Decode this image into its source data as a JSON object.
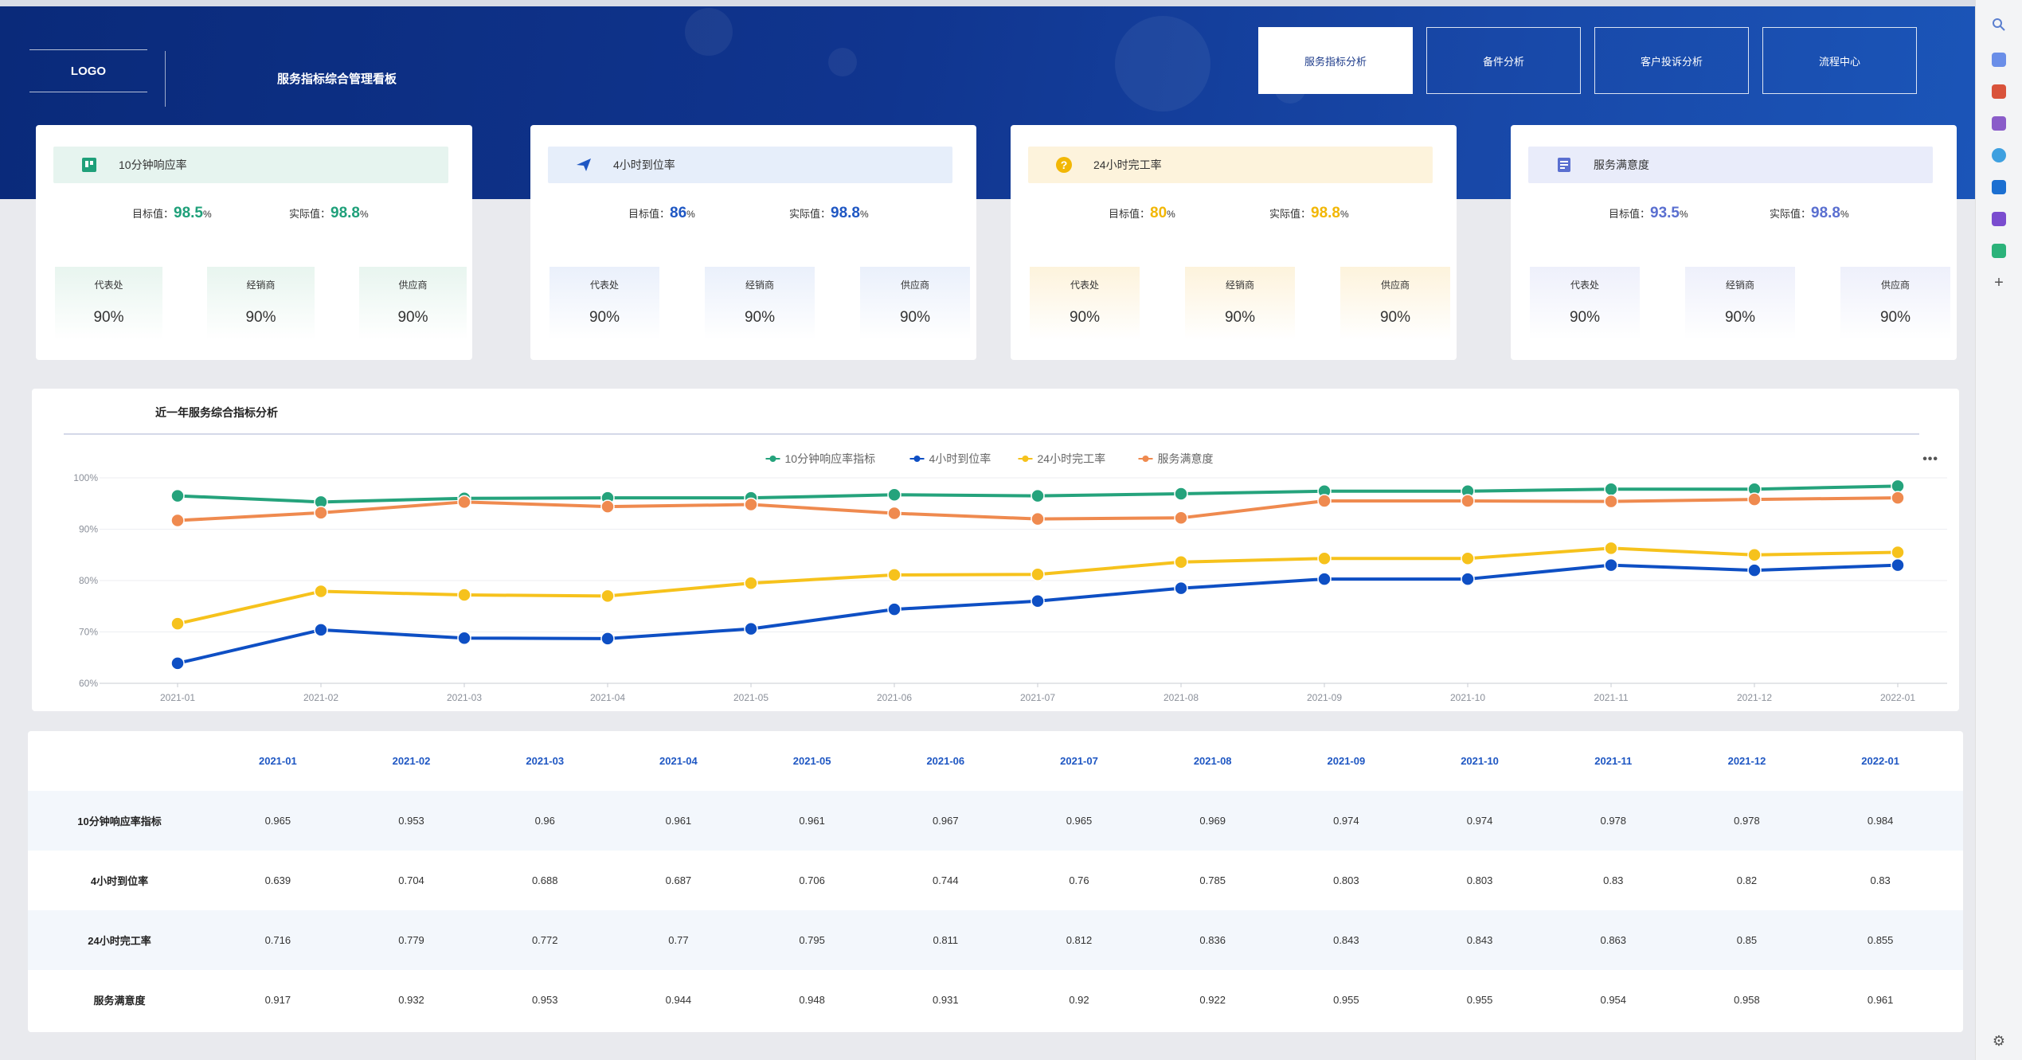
{
  "header": {
    "logo": "LOGO",
    "title": "服务指标综合管理看板",
    "tabs": [
      {
        "label": "服务指标分析",
        "active": true
      },
      {
        "label": "备件分析",
        "active": false
      },
      {
        "label": "客户投诉分析",
        "active": false
      },
      {
        "label": "流程中心",
        "active": false
      }
    ]
  },
  "cards": [
    {
      "title": "10分钟响应率",
      "icon": "flag-icon",
      "accent": "#1fa07a",
      "head_bg": "#e6f4ef",
      "target_label": "目标值：",
      "target": "98.5",
      "actual_label": "实际值：",
      "actual": "98.8",
      "unit": "%",
      "subs": [
        {
          "label": "代表处",
          "value": "90%"
        },
        {
          "label": "经销商",
          "value": "90%"
        },
        {
          "label": "供应商",
          "value": "90%"
        }
      ],
      "sub_bg": "#e8f5ef"
    },
    {
      "title": "4小时到位率",
      "icon": "paper-plane-icon",
      "accent": "#1f57c3",
      "head_bg": "#e6eefa",
      "target_label": "目标值：",
      "target": "86",
      "actual_label": "实际值：",
      "actual": "98.8",
      "unit": "%",
      "subs": [
        {
          "label": "代表处",
          "value": "90%"
        },
        {
          "label": "经销商",
          "value": "90%"
        },
        {
          "label": "供应商",
          "value": "90%"
        }
      ],
      "sub_bg": "#eaf0fb"
    },
    {
      "title": "24小时完工率",
      "icon": "question-icon",
      "accent": "#f2b705",
      "head_bg": "#fdf3dc",
      "target_label": "目标值：",
      "target": "80",
      "actual_label": "实际值：",
      "actual": "98.8",
      "unit": "%",
      "subs": [
        {
          "label": "代表处",
          "value": "90%"
        },
        {
          "label": "经销商",
          "value": "90%"
        },
        {
          "label": "供应商",
          "value": "90%"
        }
      ],
      "sub_bg": "#fdf3dc"
    },
    {
      "title": "服务满意度",
      "icon": "document-icon",
      "accent": "#5a6fd0",
      "head_bg": "#e9ecfa",
      "target_label": "目标值：",
      "target": "93.5",
      "actual_label": "实际值：",
      "actual": "98.8",
      "unit": "%",
      "subs": [
        {
          "label": "代表处",
          "value": "90%"
        },
        {
          "label": "经销商",
          "value": "90%"
        },
        {
          "label": "供应商",
          "value": "90%"
        }
      ],
      "sub_bg": "#eef0fb"
    }
  ],
  "chart_title": "近一年服务综合指标分析",
  "chart_data": {
    "type": "line",
    "title": "近一年服务综合指标分析",
    "categories": [
      "2021-01",
      "2021-02",
      "2021-03",
      "2021-04",
      "2021-05",
      "2021-06",
      "2021-07",
      "2021-08",
      "2021-09",
      "2021-10",
      "2021-11",
      "2021-12",
      "2022-01"
    ],
    "ylim": [
      0.6,
      1.0
    ],
    "yticks": [
      "60%",
      "70%",
      "80%",
      "90%",
      "100%"
    ],
    "legend": "top-center",
    "series": [
      {
        "name": "10分钟响应率指标",
        "color": "#25a37c",
        "values": [
          0.965,
          0.953,
          0.96,
          0.961,
          0.961,
          0.967,
          0.965,
          0.969,
          0.974,
          0.974,
          0.978,
          0.978,
          0.984
        ]
      },
      {
        "name": "4小时到位率",
        "color": "#0e4fc4",
        "values": [
          0.639,
          0.704,
          0.688,
          0.687,
          0.706,
          0.744,
          0.76,
          0.785,
          0.803,
          0.803,
          0.83,
          0.82,
          0.83
        ]
      },
      {
        "name": "24小时完工率",
        "color": "#f6c21c",
        "values": [
          0.716,
          0.779,
          0.772,
          0.77,
          0.795,
          0.811,
          0.812,
          0.836,
          0.843,
          0.843,
          0.863,
          0.85,
          0.855
        ]
      },
      {
        "name": "服务满意度",
        "color": "#ef8a4f",
        "values": [
          0.917,
          0.932,
          0.953,
          0.944,
          0.948,
          0.931,
          0.92,
          0.922,
          0.955,
          0.955,
          0.954,
          0.958,
          0.961
        ]
      }
    ]
  },
  "table": {
    "columns": [
      "2021-01",
      "2021-02",
      "2021-03",
      "2021-04",
      "2021-05",
      "2021-06",
      "2021-07",
      "2021-08",
      "2021-09",
      "2021-10",
      "2021-11",
      "2021-12",
      "2022-01"
    ],
    "rows": [
      {
        "label": "10分钟响应率指标",
        "values": [
          "0.965",
          "0.953",
          "0.96",
          "0.961",
          "0.961",
          "0.967",
          "0.965",
          "0.969",
          "0.974",
          "0.974",
          "0.978",
          "0.978",
          "0.984"
        ]
      },
      {
        "label": "4小时到位率",
        "values": [
          "0.639",
          "0.704",
          "0.688",
          "0.687",
          "0.706",
          "0.744",
          "0.76",
          "0.785",
          "0.803",
          "0.803",
          "0.83",
          "0.82",
          "0.83"
        ]
      },
      {
        "label": "24小时完工率",
        "values": [
          "0.716",
          "0.779",
          "0.772",
          "0.77",
          "0.795",
          "0.811",
          "0.812",
          "0.836",
          "0.843",
          "0.843",
          "0.863",
          "0.85",
          "0.855"
        ]
      },
      {
        "label": "服务满意度",
        "values": [
          "0.917",
          "0.932",
          "0.953",
          "0.944",
          "0.948",
          "0.931",
          "0.92",
          "0.922",
          "0.955",
          "0.955",
          "0.954",
          "0.958",
          "0.961"
        ]
      }
    ]
  }
}
